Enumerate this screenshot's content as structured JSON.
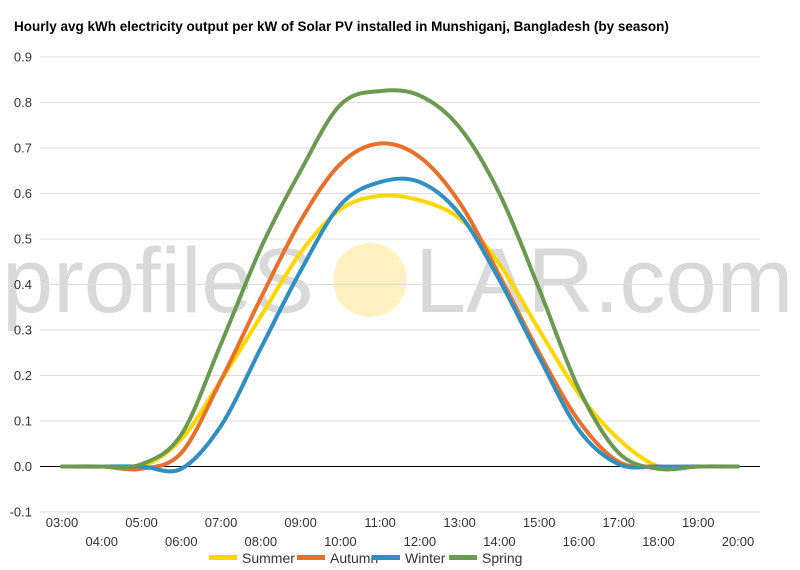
{
  "colors": {
    "summer": "#ffd700",
    "autumn": "#e8702a",
    "winter": "#2e8fc2",
    "spring": "#6a9a50",
    "grid": "#dddddd",
    "zero_line": "#000000",
    "watermark": "#d9d9d9",
    "watermark_sun": "#fff2c0"
  },
  "watermark": {
    "left": "profileS",
    "right": "LAR.com"
  },
  "chart_data": {
    "type": "line",
    "title": "Hourly avg kWh electricity output per kW of Solar PV installed in Munshiganj, Bangladesh (by season)",
    "xlabel": "",
    "ylabel": "",
    "ylim": [
      -0.1,
      0.9
    ],
    "y_ticks": [
      "-0.1",
      "0.0",
      "0.1",
      "0.2",
      "0.3",
      "0.4",
      "0.5",
      "0.6",
      "0.7",
      "0.8",
      "0.9"
    ],
    "grid": true,
    "legend_position": "bottom",
    "x": [
      "03:00",
      "04:00",
      "05:00",
      "06:00",
      "07:00",
      "08:00",
      "09:00",
      "10:00",
      "11:00",
      "12:00",
      "13:00",
      "14:00",
      "15:00",
      "16:00",
      "17:00",
      "18:00",
      "19:00",
      "20:00"
    ],
    "series": [
      {
        "name": "Summer",
        "color_key": "summer",
        "values": [
          0.0,
          0.0,
          0.0,
          0.06,
          0.19,
          0.33,
          0.47,
          0.565,
          0.595,
          0.585,
          0.545,
          0.445,
          0.3,
          0.16,
          0.06,
          0.0,
          0.0,
          0.0
        ]
      },
      {
        "name": "Autumn",
        "color_key": "autumn",
        "values": [
          0.0,
          0.0,
          -0.005,
          0.03,
          0.19,
          0.37,
          0.54,
          0.665,
          0.71,
          0.68,
          0.58,
          0.42,
          0.25,
          0.1,
          0.01,
          0.0,
          0.0,
          0.0
        ]
      },
      {
        "name": "Winter",
        "color_key": "winter",
        "values": [
          0.0,
          0.0,
          0.0,
          -0.005,
          0.09,
          0.26,
          0.43,
          0.575,
          0.625,
          0.625,
          0.555,
          0.41,
          0.24,
          0.08,
          0.005,
          0.0,
          0.0,
          0.0
        ]
      },
      {
        "name": "Spring",
        "color_key": "spring",
        "values": [
          0.0,
          0.0,
          0.005,
          0.07,
          0.27,
          0.48,
          0.65,
          0.795,
          0.825,
          0.815,
          0.745,
          0.6,
          0.39,
          0.17,
          0.03,
          -0.005,
          0.0,
          0.0
        ]
      }
    ]
  }
}
